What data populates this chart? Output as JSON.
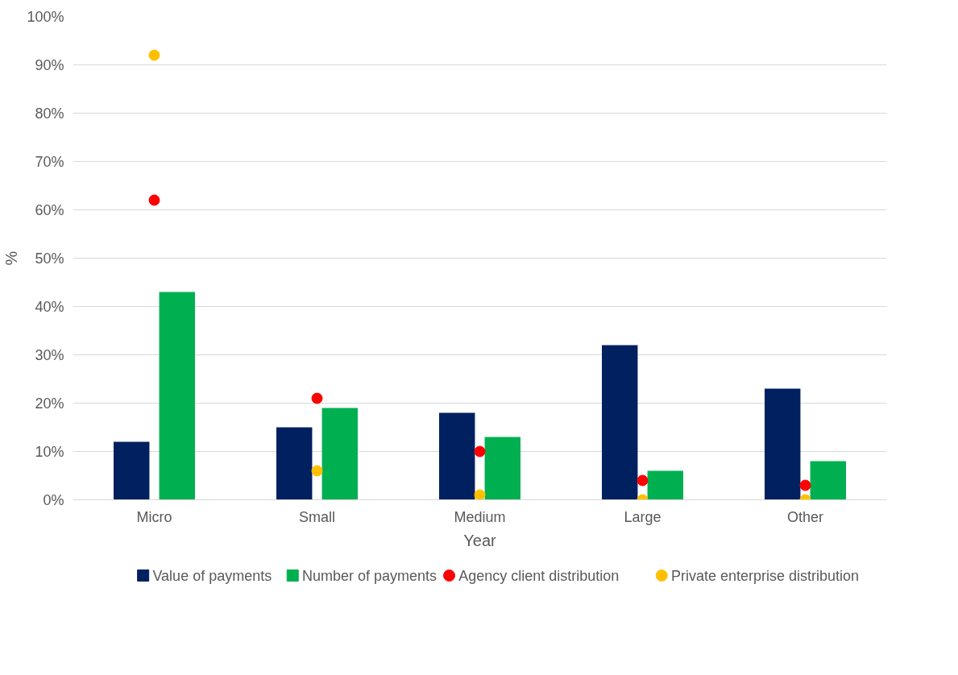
{
  "chart_data": {
    "type": "bar",
    "xlabel": "Year",
    "ylabel": "%",
    "categories": [
      "Micro",
      "Small",
      "Medium",
      "Large",
      "Other"
    ],
    "series": [
      {
        "name": "Value of payments",
        "color": "#002060",
        "values": [
          12,
          15,
          18,
          32,
          23
        ]
      },
      {
        "name": "Number of payments",
        "color": "#00b050",
        "values": [
          43,
          19,
          13,
          6,
          8
        ]
      },
      {
        "name": "Agency client distribution",
        "type": "scatter",
        "color": "#ff0000",
        "values": [
          62,
          21,
          10,
          4,
          3
        ]
      },
      {
        "name": "Private enterprise distribution",
        "type": "scatter",
        "color": "#ffc000",
        "values": [
          92,
          6,
          1,
          0,
          0
        ]
      }
    ],
    "ylim": [
      0,
      100
    ],
    "yticks": [
      {
        "value": 0,
        "label": "0%"
      },
      {
        "value": 10,
        "label": "10%"
      },
      {
        "value": 20,
        "label": "20%"
      },
      {
        "value": 30,
        "label": "30%"
      },
      {
        "value": 40,
        "label": "40%"
      },
      {
        "value": 50,
        "label": "50%"
      },
      {
        "value": 60,
        "label": "60%"
      },
      {
        "value": 70,
        "label": "70%"
      },
      {
        "value": 80,
        "label": "80%"
      },
      {
        "value": 90,
        "label": "90%"
      },
      {
        "value": 100,
        "label": "100%"
      }
    ],
    "grid": "y",
    "legend": "bottom",
    "marker": "circle"
  }
}
